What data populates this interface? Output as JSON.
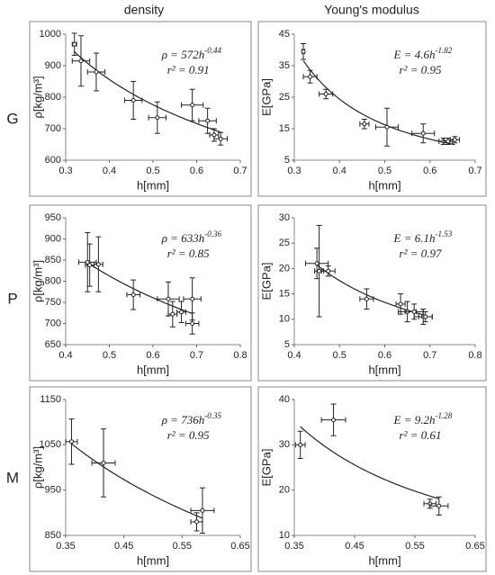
{
  "column_headers": [
    "density",
    "Young's modulus"
  ],
  "row_labels": [
    "G",
    "P",
    "M"
  ],
  "chart_data": [
    {
      "type": "scatter",
      "y_label": "ρ[kg/m³]",
      "x_label": "h[mm]",
      "color": "#222",
      "xlim": [
        0.3,
        0.7
      ],
      "xticks": [
        0.3,
        0.4,
        0.5,
        0.6,
        0.7
      ],
      "ylim": [
        600,
        1000
      ],
      "yticks": [
        600,
        700,
        800,
        900,
        1000
      ],
      "x": [
        0.32,
        0.335,
        0.37,
        0.455,
        0.51,
        0.59,
        0.625,
        0.64,
        0.655
      ],
      "values": [
        968,
        915,
        880,
        790,
        735,
        775,
        725,
        680,
        668
      ],
      "x_err": [
        0.005,
        0.02,
        0.02,
        0.02,
        0.02,
        0.025,
        0.02,
        0.01,
        0.015
      ],
      "y_err": [
        35,
        80,
        60,
        60,
        50,
        50,
        40,
        20,
        20
      ],
      "fit": {
        "prefix": "ρ = ",
        "coef": 572,
        "var": "h",
        "exp": -0.44,
        "r2_label": "r² = 0.91"
      }
    },
    {
      "type": "scatter",
      "y_label": "E[GPa]",
      "x_label": "h[mm]",
      "color": "#222",
      "xlim": [
        0.3,
        0.7
      ],
      "xticks": [
        0.3,
        0.4,
        0.5,
        0.6,
        0.7
      ],
      "ylim": [
        5,
        45
      ],
      "yticks": [
        5,
        15,
        25,
        35,
        45
      ],
      "x": [
        0.32,
        0.335,
        0.37,
        0.455,
        0.505,
        0.585,
        0.63,
        0.64,
        0.655
      ],
      "values": [
        39.5,
        31.5,
        26,
        16.5,
        15.5,
        13.5,
        11,
        11,
        11.5
      ],
      "x_err": [
        0.003,
        0.015,
        0.015,
        0.01,
        0.025,
        0.025,
        0.01,
        0.01,
        0.01
      ],
      "y_err": [
        2.5,
        2,
        1.5,
        1.5,
        6,
        3,
        1,
        1,
        1
      ],
      "fit": {
        "prefix": "E = ",
        "coef": 4.6,
        "var": "h",
        "exp": -1.82,
        "r2_label": "r² = 0.95"
      }
    },
    {
      "type": "scatter",
      "y_label": "ρ[kg/m³]",
      "x_label": "h[mm]",
      "color": "#222",
      "xlim": [
        0.4,
        0.8
      ],
      "xticks": [
        0.4,
        0.5,
        0.6,
        0.7,
        0.8
      ],
      "ylim": [
        650,
        950
      ],
      "yticks": [
        650,
        700,
        750,
        800,
        850,
        900,
        950
      ],
      "x": [
        0.45,
        0.455,
        0.475,
        0.555,
        0.635,
        0.645,
        0.665,
        0.69,
        0.69
      ],
      "values": [
        845,
        838,
        840,
        768,
        758,
        722,
        727,
        758,
        700
      ],
      "x_err": [
        0.02,
        0.01,
        0.01,
        0.015,
        0.025,
        0.01,
        0.01,
        0.02,
        0.015
      ],
      "y_err": [
        70,
        50,
        65,
        35,
        40,
        30,
        25,
        50,
        25
      ],
      "fit": {
        "prefix": "ρ = ",
        "coef": 633,
        "var": "h",
        "exp": -0.36,
        "r2_label": "r² = 0.85"
      }
    },
    {
      "type": "scatter",
      "y_label": "E[GPa]",
      "x_label": "h[mm]",
      "color": "#222",
      "xlim": [
        0.4,
        0.8
      ],
      "xticks": [
        0.4,
        0.5,
        0.6,
        0.7,
        0.8
      ],
      "ylim": [
        5,
        30
      ],
      "yticks": [
        5,
        10,
        15,
        20,
        25,
        30
      ],
      "x": [
        0.45,
        0.455,
        0.475,
        0.56,
        0.635,
        0.65,
        0.665,
        0.685,
        0.69
      ],
      "values": [
        21,
        19.5,
        19.5,
        14,
        13,
        11.5,
        11.5,
        10.5,
        10.5
      ],
      "x_err": [
        0.025,
        0.01,
        0.015,
        0.015,
        0.01,
        0.02,
        0.02,
        0.02,
        0.015
      ],
      "y_err": [
        3,
        9,
        1,
        2,
        2,
        2,
        1.5,
        1.5,
        1
      ],
      "fit": {
        "prefix": "E = ",
        "coef": 6.1,
        "var": "h",
        "exp": -1.53,
        "r2_label": "r² = 0.97"
      }
    },
    {
      "type": "scatter",
      "y_label": "ρ[kg/m³]",
      "x_label": "h[mm]",
      "color": "#222",
      "xlim": [
        0.35,
        0.65
      ],
      "xticks": [
        0.35,
        0.45,
        0.55,
        0.65
      ],
      "ylim": [
        850,
        1150
      ],
      "yticks": [
        850,
        950,
        1050,
        1150
      ],
      "x": [
        0.36,
        0.415,
        0.575,
        0.585
      ],
      "values": [
        1057,
        1010,
        880,
        905
      ],
      "x_err": [
        0.01,
        0.02,
        0.01,
        0.02
      ],
      "y_err": [
        50,
        75,
        20,
        50
      ],
      "fit": {
        "prefix": "ρ = ",
        "coef": 736,
        "var": "h",
        "exp": -0.35,
        "r2_label": "r² = 0.95"
      }
    },
    {
      "type": "scatter",
      "y_label": "E[GPa]",
      "x_label": "h[mm]",
      "color": "#222",
      "xlim": [
        0.35,
        0.65
      ],
      "xticks": [
        0.35,
        0.45,
        0.55,
        0.65
      ],
      "ylim": [
        10,
        40
      ],
      "yticks": [
        10,
        20,
        30,
        40
      ],
      "x": [
        0.36,
        0.415,
        0.575,
        0.59
      ],
      "values": [
        30,
        35.5,
        17,
        16.5
      ],
      "x_err": [
        0.008,
        0.02,
        0.01,
        0.015
      ],
      "y_err": [
        3,
        3.5,
        1,
        2
      ],
      "fit": {
        "prefix": "E = ",
        "coef": 9.2,
        "var": "h",
        "exp": -1.28,
        "r2_label": "r² = 0.61"
      }
    }
  ]
}
